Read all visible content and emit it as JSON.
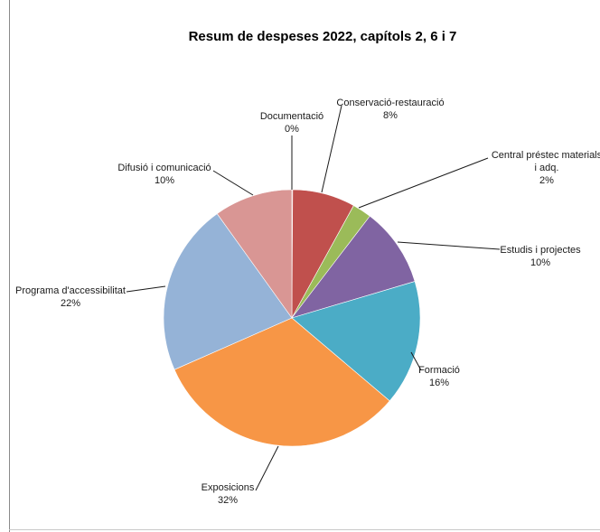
{
  "chart_data": {
    "type": "pie",
    "title": "Resum de despeses 2022, capítols 2, 6 i 7",
    "start_angle_deg": 0,
    "direction": "clockwise",
    "legend": "none",
    "slices": [
      {
        "label": "Documentació",
        "percent_label": "0%",
        "value": 0.1,
        "color": "#c0504d"
      },
      {
        "label": "Conservació-restauració",
        "percent_label": "8%",
        "value": 7.9,
        "color": "#c0504d"
      },
      {
        "label": "Central préstec materials i adq.",
        "label_lines": [
          "Central préstec materials",
          "i adq."
        ],
        "percent_label": "2%",
        "value": 2.4,
        "color": "#9bbb59"
      },
      {
        "label": "Estudis i projectes",
        "percent_label": "10%",
        "value": 10,
        "color": "#8064a2"
      },
      {
        "label": "Formació",
        "percent_label": "16%",
        "value": 15.8,
        "color": "#4bacc6"
      },
      {
        "label": "Exposicions",
        "percent_label": "32%",
        "value": 32.2,
        "color": "#f79646"
      },
      {
        "label": "Programa d'accessibilitat",
        "percent_label": "22%",
        "value": 21.7,
        "color": "#95b3d7"
      },
      {
        "label": "Difusió i comunicació",
        "percent_label": "10%",
        "value": 9.9,
        "color": "#d99694"
      }
    ]
  }
}
